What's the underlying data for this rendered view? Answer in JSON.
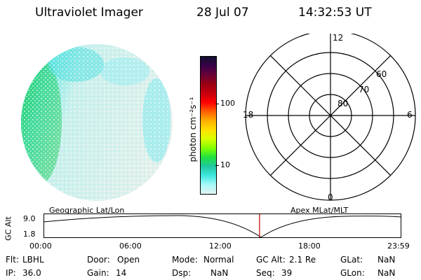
{
  "header": {
    "title": "Ultraviolet Imager",
    "date": "28 Jul 07",
    "time": "14:32:53 UT"
  },
  "colorbar": {
    "unit_label": "photon cm⁻²s⁻¹",
    "tick_100": "100",
    "tick_10": "10",
    "colors": [
      "#101030",
      "#3a0048",
      "#6a0038",
      "#9a0010",
      "#c80010",
      "#ff0000",
      "#ff6000",
      "#ffb000",
      "#ffe000",
      "#d8ff00",
      "#80ff00",
      "#20e040",
      "#20c8a0",
      "#40e8e0",
      "#a8f8f8",
      "#e0f4f0"
    ]
  },
  "polar": {
    "mlt_top": "12",
    "mlt_left": "18",
    "mlt_right": "6",
    "mlt_bottom": "0",
    "lat_60": "60",
    "lat_70": "70",
    "lat_80": "80"
  },
  "labels": {
    "left_map": "Geographic Lat/Lon",
    "right_map": "Apex MLat/MLT"
  },
  "timeline": {
    "axis_label": "GC Alt",
    "y_max": "9.0",
    "y_min": "1.8",
    "x_ticks": [
      "00:00",
      "06:00",
      "12:00",
      "18:00",
      "23:59"
    ],
    "current_time_fraction": 0.605
  },
  "info": {
    "flt_label": "Flt:",
    "flt_value": "LBHL",
    "door_label": "Door:",
    "door_value": "Open",
    "mode_label": "Mode:",
    "mode_value": "Normal",
    "gcalt_label": "GC Alt:",
    "gcalt_value": "2.1 Re",
    "glat_label": "GLat:",
    "glat_value": "NaN",
    "ip_label": "IP:",
    "ip_value": "36.0",
    "gain_label": "Gain:",
    "gain_value": "14",
    "dsp_label": "Dsp:",
    "dsp_value": "NaN",
    "seq_label": "Seq:",
    "seq_value": "39",
    "glon_label": "GLon:",
    "glon_value": "NaN"
  }
}
